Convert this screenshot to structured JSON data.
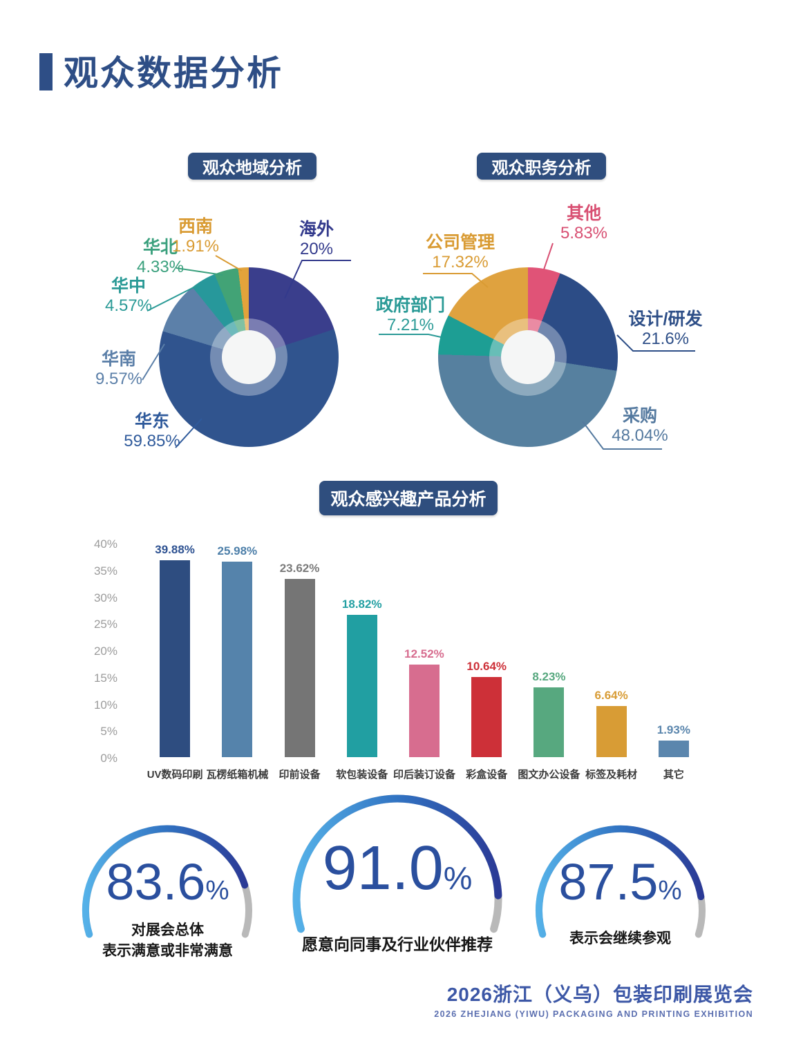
{
  "header": {
    "title": "观众数据分析"
  },
  "chart_data": [
    {
      "id": "region-pie",
      "type": "pie",
      "title": "观众地域分析",
      "segments": [
        {
          "label": "海外",
          "value": 20,
          "display": "20%",
          "color": "#3a3e8c",
          "label_color": "#333a8c"
        },
        {
          "label": "华东",
          "value": 59.85,
          "display": "59.85%",
          "color": "#30548e",
          "label_color": "#2f5a9b"
        },
        {
          "label": "华南",
          "value": 9.57,
          "display": "9.57%",
          "color": "#5c80a9",
          "label_color": "#5b7fa8"
        },
        {
          "label": "华中",
          "value": 4.57,
          "display": "4.57%",
          "color": "#27989b",
          "label_color": "#2a9a96"
        },
        {
          "label": "华北",
          "value": 4.33,
          "display": "4.33%",
          "color": "#42a376",
          "label_color": "#3aa07d"
        },
        {
          "label": "西南",
          "value": 1.91,
          "display": "1.91%",
          "color": "#e3a33b",
          "label_color": "#d99b33"
        }
      ]
    },
    {
      "id": "role-pie",
      "type": "pie",
      "title": "观众职务分析",
      "segments": [
        {
          "label": "其他",
          "value": 5.83,
          "display": "5.83%",
          "color": "#e05377",
          "label_color": "#d84f72"
        },
        {
          "label": "设计/研发",
          "value": 21.6,
          "display": "21.6%",
          "color": "#2c4c86",
          "label_color": "#2d4e87"
        },
        {
          "label": "采购",
          "value": 48.04,
          "display": "48.04%",
          "color": "#56809f",
          "label_color": "#54799f"
        },
        {
          "label": "政府部门",
          "value": 7.21,
          "display": "7.21%",
          "color": "#1d9e94",
          "label_color": "#2a9a96"
        },
        {
          "label": "公司管理",
          "value": 17.32,
          "display": "17.32%",
          "color": "#dfa23f",
          "label_color": "#d99b33"
        }
      ]
    },
    {
      "id": "products-bar",
      "type": "bar",
      "title": "观众感兴趣产品分析",
      "ylim": [
        0,
        40
      ],
      "yticks": [
        "0%",
        "5%",
        "10%",
        "15%",
        "20%",
        "25%",
        "30%",
        "35%",
        "40%"
      ],
      "categories": [
        "UV数码印刷",
        "瓦楞纸箱机械",
        "印前设备",
        "软包装设备",
        "印后装订设备",
        "彩盒设备",
        "图文办公设备",
        "标签及耗材",
        "其它"
      ],
      "values": [
        39.88,
        25.98,
        23.62,
        18.82,
        12.52,
        10.64,
        8.23,
        6.64,
        1.93
      ],
      "display_labels": [
        "39.88%",
        "25.98%",
        "23.62%",
        "18.82%",
        "12.52%",
        "10.64%",
        "8.23%",
        "6.64%",
        "1.93%"
      ],
      "display_heights_pct": [
        39.5,
        36.5,
        33.3,
        26.6,
        17.3,
        15.0,
        13.0,
        9.5,
        3.1
      ],
      "colors": [
        "#2e4d80",
        "#5583ab",
        "#757575",
        "#219fa2",
        "#d76d8f",
        "#cd3038",
        "#57a87f",
        "#d89c35",
        "#5b86ad"
      ],
      "label_colors": [
        "#2d5191",
        "#4d7fa9",
        "#7a7a7a",
        "#24a0a3",
        "#d76d8f",
        "#cd3038",
        "#57a87f",
        "#d89c35",
        "#5b86ad"
      ]
    },
    {
      "id": "satisfaction-gauges",
      "type": "gauge",
      "items": [
        {
          "value": 83.6,
          "number": "83.6",
          "unit": "%",
          "caption_lines": [
            "对展会总体",
            "表示满意或非常满意"
          ]
        },
        {
          "value": 91.0,
          "number": "91.0",
          "unit": "%",
          "caption_lines": [
            "愿意向同事及行业伙伴推荐"
          ]
        },
        {
          "value": 87.5,
          "number": "87.5",
          "unit": "%",
          "caption_lines": [
            "表示会继续参观"
          ]
        }
      ],
      "arc_colors": {
        "start": "#55b1e8",
        "mid": "#3173c2",
        "end": "#2b3a96",
        "rest": "#b9b9b9"
      }
    }
  ],
  "footer": {
    "line1": "2026浙江（义乌）包装印刷展览会",
    "line2": "2026 ZHEJIANG (YIWU) PACKAGING AND PRINTING EXHIBITION"
  }
}
